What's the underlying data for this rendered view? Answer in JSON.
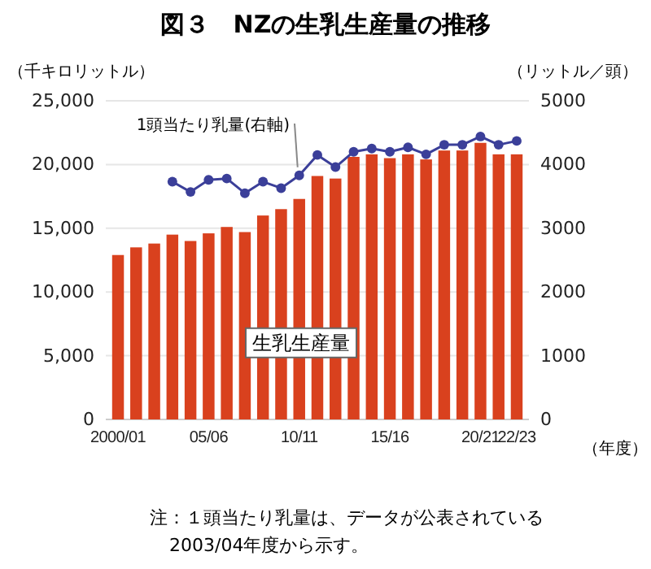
{
  "chart_data": {
    "type": "bar",
    "title": "図３　NZの生乳生産量の推移",
    "ylabel": "（千キロリットル）",
    "y2label": "（リットル／頭）",
    "xlabel": "（年度）",
    "categories": [
      "2000/01",
      null,
      null,
      null,
      null,
      "05/06",
      null,
      null,
      null,
      null,
      "10/11",
      null,
      null,
      null,
      null,
      "15/16",
      null,
      null,
      null,
      null,
      "20/21",
      null,
      "22/23"
    ],
    "series": [
      {
        "name": "生乳生産量",
        "color": "#d9411e",
        "values": [
          12900,
          13500,
          13800,
          14500,
          14000,
          14600,
          15100,
          14700,
          16000,
          16500,
          17300,
          19100,
          18900,
          20600,
          20800,
          20500,
          20800,
          20400,
          21100,
          21100,
          21700,
          20800,
          20800
        ]
      },
      {
        "name": "1頭当たり乳量(右軸)",
        "type": "line",
        "axis": "y2",
        "color": "#3b3f99",
        "marker": "circle",
        "values": [
          null,
          null,
          null,
          3730,
          3570,
          3760,
          3780,
          3550,
          3730,
          3630,
          3830,
          4150,
          3960,
          4200,
          4250,
          4200,
          4270,
          4160,
          4310,
          4310,
          4440,
          4310,
          4370
        ]
      }
    ],
    "ylim": [
      0,
      25000
    ],
    "yticks": [
      {
        "value": 0,
        "label": "0"
      },
      {
        "value": 5000,
        "label": "5,000"
      },
      {
        "value": 10000,
        "label": "10,000"
      },
      {
        "value": 15000,
        "label": "15,000"
      },
      {
        "value": 20000,
        "label": "20,000"
      },
      {
        "value": 25000,
        "label": "25,000"
      }
    ],
    "y2lim": [
      0,
      5000
    ],
    "y2ticks": [
      0,
      1000,
      2000,
      3000,
      4000,
      5000
    ],
    "grid": "y",
    "annotations": [
      "注：１頭当たり乳量は、データが公表されている",
      "2003/04年度から示す。"
    ]
  }
}
